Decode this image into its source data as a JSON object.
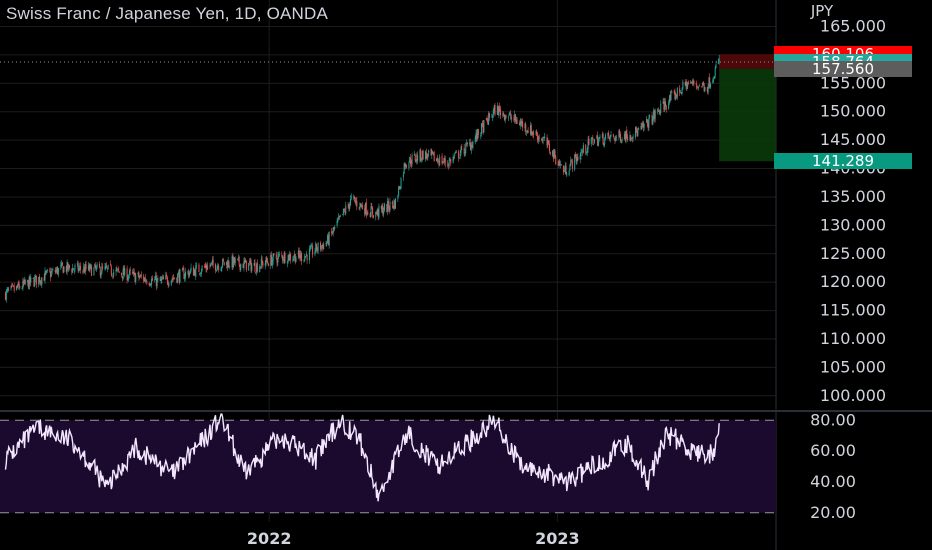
{
  "title": "Swiss Franc / Japanese Yen, 1D, OANDA",
  "currency": "JPY",
  "colors": {
    "background": "#000000",
    "grid": "#1c1c1c",
    "up": "#26a69a",
    "down": "#ef5350",
    "text": "#d1d4dc",
    "rsi_line": "#f3e6ff",
    "rsi_band": "#1b0a2e",
    "stop_zone": "#5a0a0a",
    "target_zone": "#0a3a0a",
    "stop_label": "#ff0000",
    "current_label": "#26a69a",
    "entry_label": "#5d5d5d",
    "target_label": "#089981"
  },
  "chart_data": [
    {
      "type": "candlestick",
      "title": "Swiss Franc / Japanese Yen, 1D, OANDA",
      "y_axis_label": "JPY",
      "y_ticks": [
        100,
        105,
        110,
        115,
        120,
        125,
        130,
        135,
        140,
        145,
        150,
        155,
        160,
        165
      ],
      "y_tick_labels": [
        "100.000",
        "105.000",
        "110.000",
        "115.000",
        "120.000",
        "125.000",
        "130.000",
        "135.000",
        "140.000",
        "145.000",
        "150.000",
        "155.000",
        "160.000",
        "165.000"
      ],
      "ylim": [
        97.5,
        166.5
      ],
      "x_ticks": [
        "2022",
        "2023"
      ],
      "grid": true,
      "price_path": [
        {
          "date": "2021-02-01",
          "close": 118
        },
        {
          "date": "2021-04-15",
          "close": 122.5
        },
        {
          "date": "2021-06-15",
          "close": 122
        },
        {
          "date": "2021-08-15",
          "close": 120
        },
        {
          "date": "2021-10-15",
          "close": 122.8
        },
        {
          "date": "2021-11-15",
          "close": 123.5
        },
        {
          "date": "2021-12-15",
          "close": 122.8
        },
        {
          "date": "2022-01-15",
          "close": 124.5
        },
        {
          "date": "2022-02-15",
          "close": 124.6
        },
        {
          "date": "2022-03-15",
          "close": 127
        },
        {
          "date": "2022-04-15",
          "close": 134.5
        },
        {
          "date": "2022-05-15",
          "close": 132
        },
        {
          "date": "2022-06-10",
          "close": 134
        },
        {
          "date": "2022-06-22",
          "close": 141
        },
        {
          "date": "2022-07-15",
          "close": 142.5
        },
        {
          "date": "2022-08-15",
          "close": 141
        },
        {
          "date": "2022-09-15",
          "close": 144.5
        },
        {
          "date": "2022-10-15",
          "close": 150.5
        },
        {
          "date": "2022-11-15",
          "close": 148
        },
        {
          "date": "2022-12-15",
          "close": 145
        },
        {
          "date": "2023-01-10",
          "close": 139.5
        },
        {
          "date": "2023-02-15",
          "close": 145
        },
        {
          "date": "2023-03-15",
          "close": 145.5
        },
        {
          "date": "2023-04-15",
          "close": 146.5
        },
        {
          "date": "2023-05-15",
          "close": 151
        },
        {
          "date": "2023-06-15",
          "close": 155
        },
        {
          "date": "2023-07-10",
          "close": 154.5
        },
        {
          "date": "2023-07-25",
          "close": 158.8
        }
      ],
      "position": {
        "type": "short",
        "stop": 160.106,
        "entry": 157.56,
        "target": 141.289,
        "current": 158.764
      },
      "price_labels": {
        "stop": "160.106",
        "current": "158.764",
        "entry": "157.560",
        "target": "141.289"
      }
    },
    {
      "type": "line",
      "series": [
        {
          "name": "",
          "values": "RSI oscillator"
        }
      ],
      "y_ticks": [
        20,
        40,
        60,
        80
      ],
      "y_tick_labels": [
        "20.00",
        "40.00",
        "60.00",
        "80.00"
      ],
      "ylim": [
        14,
        86
      ],
      "band": [
        20,
        80
      ],
      "rsi_path": [
        {
          "date": "2021-02-01",
          "value": 55
        },
        {
          "date": "2021-03-15",
          "value": 75
        },
        {
          "date": "2021-05-01",
          "value": 65
        },
        {
          "date": "2021-06-10",
          "value": 36
        },
        {
          "date": "2021-07-15",
          "value": 62
        },
        {
          "date": "2021-09-01",
          "value": 45
        },
        {
          "date": "2021-10-15",
          "value": 70
        },
        {
          "date": "2021-11-01",
          "value": 82
        },
        {
          "date": "2021-12-01",
          "value": 45
        },
        {
          "date": "2022-01-15",
          "value": 70
        },
        {
          "date": "2022-03-01",
          "value": 55
        },
        {
          "date": "2022-04-01",
          "value": 80
        },
        {
          "date": "2022-04-25",
          "value": 68
        },
        {
          "date": "2022-05-20",
          "value": 30
        },
        {
          "date": "2022-06-25",
          "value": 72
        },
        {
          "date": "2022-08-01",
          "value": 50
        },
        {
          "date": "2022-09-01",
          "value": 62
        },
        {
          "date": "2022-10-15",
          "value": 80
        },
        {
          "date": "2022-11-15",
          "value": 50
        },
        {
          "date": "2022-12-20",
          "value": 45
        },
        {
          "date": "2023-01-15",
          "value": 40
        },
        {
          "date": "2023-03-01",
          "value": 55
        },
        {
          "date": "2023-04-01",
          "value": 65
        },
        {
          "date": "2023-04-25",
          "value": 40
        },
        {
          "date": "2023-05-20",
          "value": 72
        },
        {
          "date": "2023-06-25",
          "value": 58
        },
        {
          "date": "2023-07-20",
          "value": 58
        },
        {
          "date": "2023-07-25",
          "value": 75
        }
      ]
    }
  ]
}
